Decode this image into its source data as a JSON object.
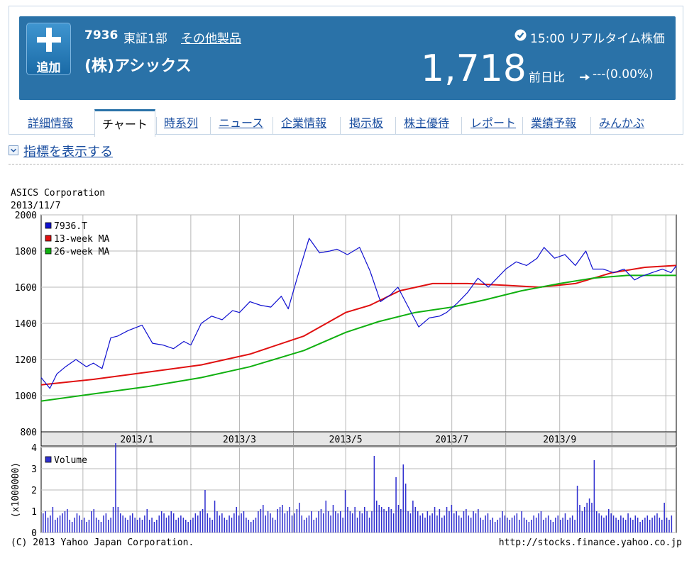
{
  "stock": {
    "add_label": "追加",
    "code": "7936",
    "market": "東証1部",
    "category": "その他製品",
    "company": "(株)アシックス",
    "time_text": "15:00 リアルタイム株価",
    "price": "1,718",
    "change_label": "前日比",
    "change_value": "---(0.00%)"
  },
  "tabs": [
    {
      "label": "詳細情報"
    },
    {
      "label": "チャート"
    },
    {
      "label": "時系列"
    },
    {
      "label": "ニュース"
    },
    {
      "label": "企業情報"
    },
    {
      "label": "掲示板"
    },
    {
      "label": "株主優待"
    },
    {
      "label": "レポート"
    },
    {
      "label": "業績予報"
    },
    {
      "label": "みんかぶ"
    }
  ],
  "indicator_toggle": "指標を表示する",
  "colors": {
    "banner": "#2a72a8",
    "price_line": "#1010d0",
    "ma13": "#e01010",
    "ma26": "#10b010",
    "volume": "#3030d0"
  },
  "chart_data": {
    "type": "line",
    "title": "ASICS Corporation",
    "subtitle": "2013/11/7",
    "footer_left": "(C) 2013 Yahoo Japan Corporation.",
    "footer_right": "http://stocks.finance.yahoo.co.jp",
    "x_tick_labels": [
      "2013/1",
      "2013/3",
      "2013/5",
      "2013/7",
      "2013/9"
    ],
    "x_range": [
      "2012-11-07",
      "2013-11-07"
    ],
    "ylim": [
      800,
      2000
    ],
    "y_ticks": [
      800,
      1000,
      1200,
      1400,
      1600,
      1800,
      2000
    ],
    "legend_position": "top-left",
    "grid": true,
    "series": [
      {
        "name": "7936.T",
        "x": [
          "2012-11-07",
          "2012-11-12",
          "2012-11-16",
          "2012-11-21",
          "2012-11-27",
          "2012-12-03",
          "2012-12-07",
          "2012-12-12",
          "2012-12-17",
          "2012-12-21",
          "2012-12-27",
          "2013-01-04",
          "2013-01-10",
          "2013-01-16",
          "2013-01-22",
          "2013-01-28",
          "2013-02-01",
          "2013-02-07",
          "2013-02-13",
          "2013-02-19",
          "2013-02-25",
          "2013-03-01",
          "2013-03-07",
          "2013-03-13",
          "2013-03-19",
          "2013-03-25",
          "2013-03-29",
          "2013-04-04",
          "2013-04-10",
          "2013-04-16",
          "2013-04-22",
          "2013-04-26",
          "2013-05-02",
          "2013-05-09",
          "2013-05-15",
          "2013-05-21",
          "2013-05-27",
          "2013-05-31",
          "2013-06-06",
          "2013-06-12",
          "2013-06-18",
          "2013-06-24",
          "2013-06-28",
          "2013-07-04",
          "2013-07-10",
          "2013-07-16",
          "2013-07-22",
          "2013-07-26",
          "2013-08-01",
          "2013-08-07",
          "2013-08-13",
          "2013-08-19",
          "2013-08-23",
          "2013-08-29",
          "2013-09-04",
          "2013-09-10",
          "2013-09-16",
          "2013-09-20",
          "2013-09-26",
          "2013-10-02",
          "2013-10-08",
          "2013-10-14",
          "2013-10-18",
          "2013-10-24",
          "2013-10-30",
          "2013-11-04",
          "2013-11-07"
        ],
        "values": [
          1100,
          1040,
          1120,
          1160,
          1200,
          1160,
          1180,
          1150,
          1320,
          1330,
          1360,
          1390,
          1290,
          1280,
          1260,
          1300,
          1280,
          1400,
          1440,
          1420,
          1470,
          1460,
          1520,
          1500,
          1490,
          1550,
          1480,
          1680,
          1870,
          1790,
          1800,
          1810,
          1780,
          1820,
          1690,
          1520,
          1560,
          1600,
          1490,
          1380,
          1430,
          1440,
          1460,
          1510,
          1570,
          1650,
          1600,
          1640,
          1700,
          1740,
          1720,
          1760,
          1820,
          1760,
          1780,
          1720,
          1800,
          1700,
          1700,
          1680,
          1700,
          1640,
          1660,
          1680,
          1700,
          1680,
          1718
        ]
      },
      {
        "name": "13-week MA",
        "x": [
          "2012-11-07",
          "2012-12-07",
          "2013-01-07",
          "2013-02-07",
          "2013-03-07",
          "2013-04-07",
          "2013-05-01",
          "2013-05-15",
          "2013-06-01",
          "2013-06-20",
          "2013-07-10",
          "2013-08-01",
          "2013-08-20",
          "2013-09-10",
          "2013-10-01",
          "2013-10-20",
          "2013-11-07"
        ],
        "values": [
          1060,
          1090,
          1130,
          1170,
          1230,
          1330,
          1460,
          1500,
          1580,
          1620,
          1620,
          1610,
          1600,
          1620,
          1680,
          1710,
          1720
        ]
      },
      {
        "name": "26-week MA",
        "x": [
          "2012-11-07",
          "2012-12-07",
          "2013-01-07",
          "2013-02-07",
          "2013-03-07",
          "2013-04-07",
          "2013-05-01",
          "2013-05-20",
          "2013-06-10",
          "2013-07-01",
          "2013-07-20",
          "2013-08-10",
          "2013-09-01",
          "2013-09-20",
          "2013-10-10",
          "2013-11-07"
        ],
        "values": [
          970,
          1010,
          1050,
          1100,
          1160,
          1250,
          1350,
          1410,
          1460,
          1490,
          1530,
          1580,
          1620,
          1650,
          1665,
          1665
        ]
      }
    ],
    "volume": {
      "ylabel": "(x1000000)",
      "legend": "Volume",
      "ylim": [
        0,
        4
      ],
      "y_ticks": [
        0,
        1,
        2,
        3,
        4
      ],
      "values": [
        0.9,
        1.0,
        0.7,
        0.8,
        1.2,
        0.6,
        0.7,
        0.8,
        0.9,
        1.0,
        1.1,
        0.6,
        0.5,
        0.7,
        0.9,
        0.8,
        0.6,
        0.7,
        0.5,
        0.6,
        1.0,
        1.1,
        0.7,
        0.6,
        0.5,
        0.8,
        0.9,
        0.6,
        0.7,
        1.2,
        4.2,
        1.2,
        0.9,
        0.8,
        0.7,
        0.6,
        0.8,
        0.9,
        0.7,
        0.6,
        0.7,
        0.6,
        0.8,
        1.1,
        0.6,
        0.7,
        0.5,
        0.6,
        0.8,
        1.0,
        0.9,
        0.7,
        0.8,
        1.0,
        0.9,
        0.6,
        0.7,
        0.8,
        0.7,
        0.6,
        0.5,
        0.6,
        0.7,
        0.9,
        0.8,
        1.0,
        1.1,
        2.0,
        0.9,
        0.7,
        0.6,
        1.5,
        1.0,
        0.8,
        0.9,
        0.7,
        0.6,
        0.8,
        0.7,
        0.9,
        1.2,
        0.8,
        0.9,
        1.0,
        0.7,
        0.6,
        0.5,
        0.6,
        0.7,
        1.0,
        1.1,
        1.3,
        0.8,
        1.0,
        0.9,
        0.7,
        0.6,
        1.1,
        1.2,
        1.3,
        0.9,
        1.0,
        1.2,
        0.8,
        0.9,
        1.1,
        1.4,
        0.8,
        0.6,
        0.7,
        0.8,
        1.0,
        0.6,
        0.7,
        1.0,
        1.1,
        0.9,
        1.5,
        1.0,
        0.8,
        1.3,
        1.0,
        0.9,
        1.0,
        0.7,
        2.0,
        1.2,
        1.0,
        0.9,
        1.2,
        0.7,
        1.0,
        0.9,
        1.2,
        1.0,
        0.7,
        1.0,
        3.6,
        1.5,
        1.3,
        1.2,
        1.1,
        1.0,
        1.2,
        1.1,
        0.9,
        2.6,
        1.3,
        1.1,
        3.2,
        2.3,
        1.0,
        0.9,
        1.5,
        1.2,
        1.0,
        0.8,
        0.9,
        0.7,
        1.0,
        0.8,
        0.9,
        1.2,
        0.8,
        1.1,
        0.7,
        0.8,
        1.2,
        1.0,
        1.3,
        0.9,
        1.0,
        0.8,
        0.7,
        1.0,
        1.1,
        0.8,
        0.7,
        1.0,
        0.9,
        1.1,
        0.7,
        0.6,
        0.8,
        0.9,
        0.6,
        0.7,
        0.5,
        0.6,
        0.7,
        1.0,
        0.8,
        0.7,
        0.6,
        0.7,
        0.8,
        0.9,
        0.6,
        1.0,
        0.7,
        0.6,
        0.5,
        0.6,
        0.8,
        0.7,
        0.9,
        1.0,
        0.6,
        0.7,
        0.8,
        0.6,
        0.5,
        0.7,
        0.8,
        0.6,
        0.7,
        0.9,
        0.6,
        0.7,
        0.8,
        0.6,
        2.2,
        1.3,
        1.0,
        1.2,
        1.4,
        1.6,
        1.4,
        3.4,
        1.0,
        0.9,
        0.8,
        0.7,
        0.8,
        1.1,
        0.9,
        0.8,
        0.7,
        0.6,
        0.8,
        0.7,
        0.6,
        0.9,
        0.7,
        0.6,
        0.8,
        0.7,
        0.5,
        0.6,
        0.7,
        0.8,
        0.6,
        0.7,
        0.8,
        0.9,
        0.7,
        0.6,
        1.4,
        0.7,
        0.6,
        0.8
      ]
    }
  }
}
